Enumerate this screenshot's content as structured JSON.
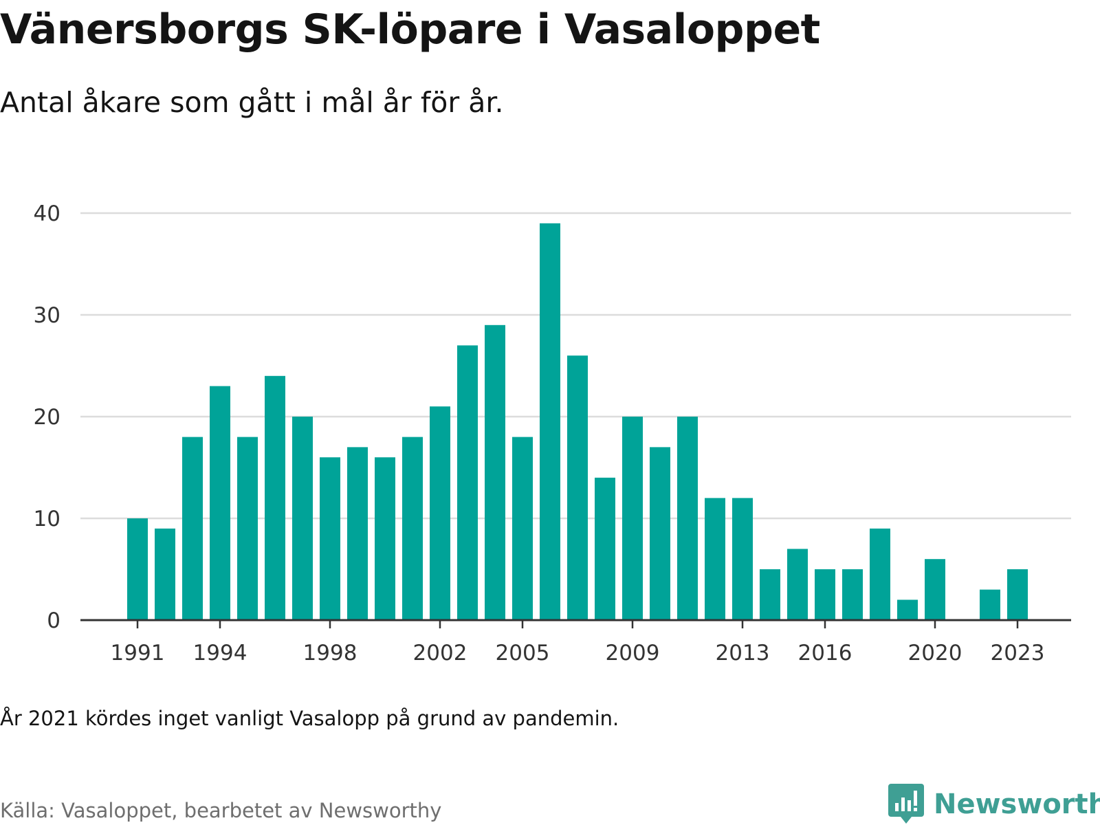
{
  "header": {
    "title": "Vänersborgs SK-löpare i Vasaloppet",
    "subtitle": "Antal åkare som gått i mål år för år."
  },
  "footer": {
    "note": "År 2021 kördes inget vanligt Vasalopp på grund av pandemin.",
    "source": "Källa: Vasaloppet, bearbetet av Newsworthy",
    "brand": "Newsworthy"
  },
  "colors": {
    "bar": "#00a398",
    "grid": "#dcdcdc",
    "axis": "#333333",
    "brand": "#3f9f94"
  },
  "icons": {
    "brand_logo": "newsworthy-logo-icon"
  },
  "chart_data": {
    "type": "bar",
    "title": "Vänersborgs SK-löpare i Vasaloppet",
    "subtitle": "Antal åkare som gått i mål år för år.",
    "categories": [
      1991,
      1992,
      1993,
      1994,
      1995,
      1996,
      1997,
      1998,
      1999,
      2000,
      2001,
      2002,
      2003,
      2004,
      2005,
      2006,
      2007,
      2008,
      2009,
      2010,
      2011,
      2012,
      2013,
      2014,
      2015,
      2016,
      2017,
      2018,
      2019,
      2020,
      2021,
      2022,
      2023
    ],
    "values": [
      10,
      9,
      18,
      23,
      18,
      24,
      20,
      16,
      17,
      16,
      18,
      21,
      27,
      29,
      18,
      39,
      26,
      14,
      20,
      17,
      20,
      12,
      12,
      5,
      7,
      5,
      5,
      9,
      2,
      6,
      null,
      3,
      5
    ],
    "x_tick_labels": [
      "1991",
      "1994",
      "1998",
      "2002",
      "2005",
      "2009",
      "2013",
      "2016",
      "2020",
      "2023"
    ],
    "y_ticks": [
      0,
      10,
      20,
      30,
      40
    ],
    "ylim": [
      0,
      40
    ],
    "grid": true,
    "legend": "none"
  }
}
